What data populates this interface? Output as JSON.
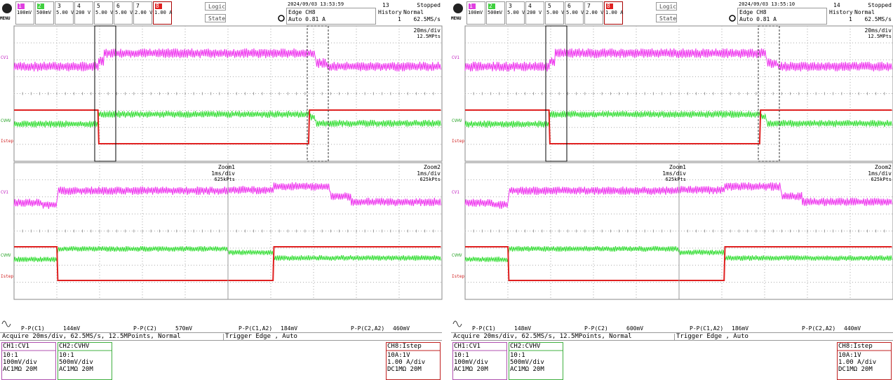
{
  "scopes": [
    {
      "menu": "MENU",
      "channels": [
        {
          "number": "1",
          "scale": "100mV"
        },
        {
          "number": "2",
          "scale": "500mV"
        },
        {
          "number": "3",
          "scale": "5.00 V"
        },
        {
          "number": "4",
          "scale": "200 V"
        },
        {
          "number": "5",
          "scale": "5.00 V"
        },
        {
          "number": "6",
          "scale": "5.00 V"
        },
        {
          "number": "7",
          "scale": "2.00 V"
        },
        {
          "number": "8",
          "scale": "1.00 A"
        }
      ],
      "logic": "Logic",
      "state": "State",
      "timestamp": "2024/09/03 13:53:59",
      "acq_count": "13",
      "status": "Stopped",
      "trigger": "Edge CH8",
      "trigger_level": "Auto 0.81 A",
      "history_label": "History",
      "history": "1",
      "mode": "Normal",
      "sample_rate": "62.5MS/s",
      "timebase": "20ms/div",
      "points": "12.5MPts",
      "trace_labels": [
        "CV1",
        "CVHV",
        "Istep"
      ],
      "zooms": [
        {
          "name": "Zoom1",
          "timebase": "1ms/div",
          "points": "625kPts"
        },
        {
          "name": "Zoom2",
          "timebase": "1ms/div",
          "points": "625kPts"
        }
      ],
      "measurements": [
        {
          "name": "P-P(C1)",
          "value": "144mV"
        },
        {
          "name": "P-P(C2)",
          "value": "570mV"
        },
        {
          "name": "P-P(C1,A2)",
          "value": "184mV"
        },
        {
          "name": "P-P(C2,A2)",
          "value": "460mV"
        }
      ],
      "acquire": "Acquire 20ms/div, 62.5MS/s, 12.5MPoints, Normal",
      "trigger_summary": "Trigger Edge , Auto",
      "channel_boxes": [
        {
          "title": "CH1:CV1",
          "lines": [
            "10:1",
            "100mV/div",
            "AC1MΩ 20M"
          ]
        },
        {
          "title": "CH2:CVHV",
          "lines": [
            "10:1",
            "500mV/div",
            "AC1MΩ 20M"
          ]
        },
        {
          "title": "CH8:Istep",
          "lines": [
            "10A:1V",
            "1.00 A/div",
            "DC1MΩ 20M"
          ]
        }
      ]
    },
    {
      "menu": "MENU",
      "channels": [
        {
          "number": "1",
          "scale": "100mV"
        },
        {
          "number": "2",
          "scale": "500mV"
        },
        {
          "number": "3",
          "scale": "5.00 V"
        },
        {
          "number": "4",
          "scale": "200 V"
        },
        {
          "number": "5",
          "scale": "5.00 V"
        },
        {
          "number": "6",
          "scale": "5.00 V"
        },
        {
          "number": "7",
          "scale": "2.00 V"
        },
        {
          "number": "8",
          "scale": "1.00 A"
        }
      ],
      "logic": "Logic",
      "state": "State",
      "timestamp": "2024/09/03 13:55:10",
      "acq_count": "14",
      "status": "Stopped",
      "trigger": "Edge CH8",
      "trigger_level": "Auto 0.81 A",
      "history_label": "History",
      "history": "1",
      "mode": "Normal",
      "sample_rate": "62.5MS/s",
      "timebase": "20ms/div",
      "points": "12.5MPts",
      "trace_labels": [
        "CV1",
        "CVHV",
        "Istep"
      ],
      "zooms": [
        {
          "name": "Zoom1",
          "timebase": "1ms/div",
          "points": "625kPts"
        },
        {
          "name": "Zoom2",
          "timebase": "1ms/div",
          "points": "625kPts"
        }
      ],
      "measurements": [
        {
          "name": "P-P(C1)",
          "value": "148mV"
        },
        {
          "name": "P-P(C2)",
          "value": "600mV"
        },
        {
          "name": "P-P(C1,A2)",
          "value": "186mV"
        },
        {
          "name": "P-P(C2,A2)",
          "value": "440mV"
        }
      ],
      "acquire": "Acquire 20ms/div, 62.5MS/s, 12.5MPoints, Normal",
      "trigger_summary": "Trigger Edge , Auto",
      "channel_boxes": [
        {
          "title": "CH1:CV1",
          "lines": [
            "10:1",
            "100mV/div",
            "AC1MΩ 20M"
          ]
        },
        {
          "title": "CH2:CVHV",
          "lines": [
            "10:1",
            "500mV/div",
            "AC1MΩ 20M"
          ]
        },
        {
          "title": "CH8:Istep",
          "lines": [
            "10A:1V",
            "1.00 A/div",
            "DC1MΩ 20M"
          ]
        }
      ]
    }
  ]
}
